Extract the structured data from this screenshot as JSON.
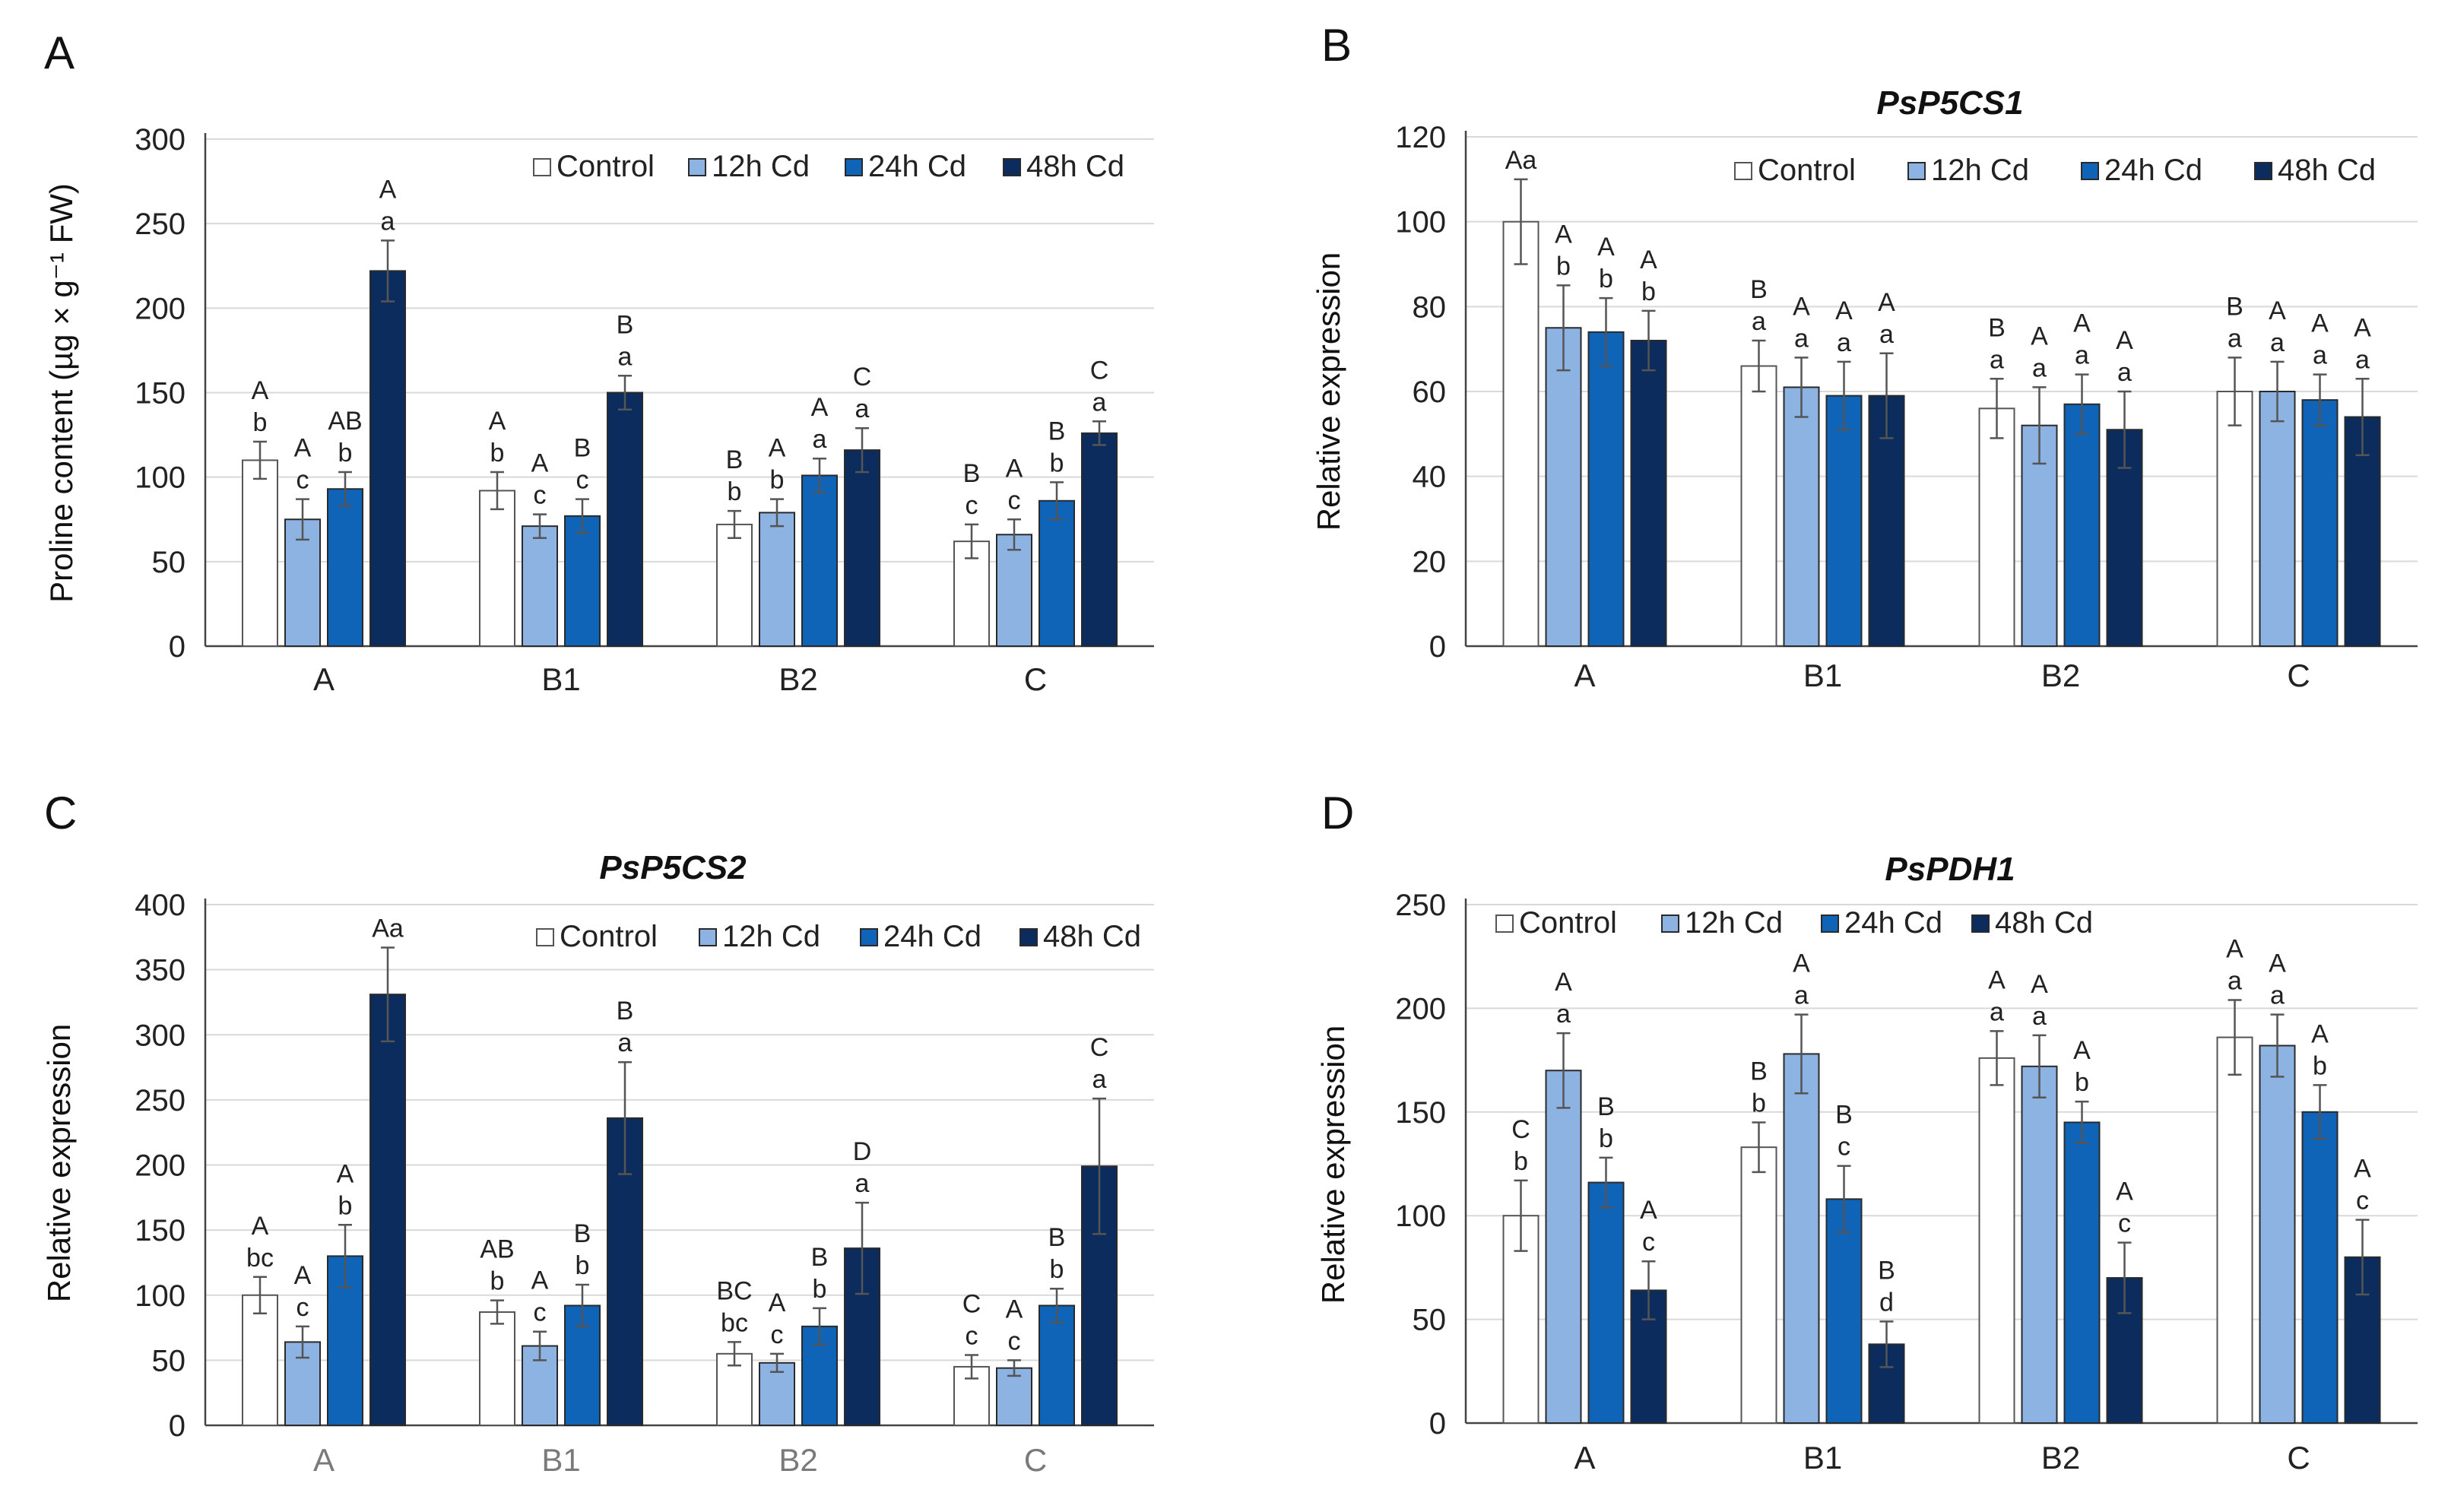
{
  "figure": {
    "legend": [
      "Control",
      "12h Cd",
      "24h Cd",
      "48h Cd"
    ],
    "colors": [
      "#ffffff",
      "#8db3e2",
      "#0f64b8",
      "#0b2c5c"
    ],
    "categories": [
      "A",
      "B1",
      "B2",
      "C"
    ]
  },
  "chart_data": [
    {
      "panel_label": "A",
      "type": "bar",
      "title": "",
      "xlabel": "",
      "ylabel": "Proline content (µg × g⁻¹ FW)",
      "ylim": [
        0,
        300
      ],
      "ytick_labels": [
        "0",
        "50",
        "100",
        "150",
        "200",
        "250",
        "300"
      ],
      "categories": [
        "A",
        "B1",
        "B2",
        "C"
      ],
      "legend_position": "top-right",
      "series": [
        {
          "name": "Control",
          "values": [
            110,
            92,
            72,
            62
          ],
          "errors": [
            11,
            11,
            8,
            10
          ],
          "upper_letters": [
            "A",
            "A",
            "B",
            "B"
          ],
          "lower_letters": [
            "b",
            "b",
            "b",
            "c"
          ]
        },
        {
          "name": "12h Cd",
          "values": [
            75,
            71,
            79,
            66
          ],
          "errors": [
            12,
            7,
            8,
            9
          ],
          "upper_letters": [
            "A",
            "A",
            "A",
            "A"
          ],
          "lower_letters": [
            "c",
            "c",
            "b",
            "c"
          ]
        },
        {
          "name": "24h Cd",
          "values": [
            93,
            77,
            101,
            86
          ],
          "errors": [
            10,
            10,
            10,
            11
          ],
          "upper_letters": [
            "AB",
            "B",
            "A",
            "B"
          ],
          "lower_letters": [
            "b",
            "c",
            "a",
            "b"
          ]
        },
        {
          "name": "48h Cd",
          "values": [
            222,
            150,
            116,
            126
          ],
          "errors": [
            18,
            10,
            13,
            7
          ],
          "upper_letters": [
            "A",
            "B",
            "C",
            "C"
          ],
          "lower_letters": [
            "a",
            "a",
            "a",
            "a"
          ]
        }
      ]
    },
    {
      "panel_label": "B",
      "type": "bar",
      "title": "PsP5CS1",
      "xlabel": "",
      "ylabel": "Relative expression",
      "ylim": [
        0,
        120
      ],
      "ytick_labels": [
        "0",
        "20",
        "40",
        "60",
        "80",
        "100",
        "120"
      ],
      "categories": [
        "A",
        "B1",
        "B2",
        "C"
      ],
      "legend_position": "top-right",
      "series": [
        {
          "name": "Control",
          "values": [
            100,
            66,
            56,
            60
          ],
          "errors": [
            10,
            6,
            7,
            8
          ],
          "upper_letters": [
            "Aa",
            "B",
            "B",
            "B"
          ],
          "lower_letters": [
            "",
            "a",
            "a",
            "a"
          ]
        },
        {
          "name": "12h Cd",
          "values": [
            75,
            61,
            52,
            60
          ],
          "errors": [
            10,
            7,
            9,
            7
          ],
          "upper_letters": [
            "A",
            "A",
            "A",
            "A"
          ],
          "lower_letters": [
            "b",
            "a",
            "a",
            "a"
          ]
        },
        {
          "name": "24h Cd",
          "values": [
            74,
            59,
            57,
            58
          ],
          "errors": [
            8,
            8,
            7,
            6
          ],
          "upper_letters": [
            "A",
            "A",
            "A",
            "A"
          ],
          "lower_letters": [
            "b",
            "a",
            "a",
            "a"
          ]
        },
        {
          "name": "48h Cd",
          "values": [
            72,
            59,
            51,
            54
          ],
          "errors": [
            7,
            10,
            9,
            9
          ],
          "upper_letters": [
            "A",
            "A",
            "A",
            "A"
          ],
          "lower_letters": [
            "b",
            "a",
            "a",
            "a"
          ]
        }
      ]
    },
    {
      "panel_label": "C",
      "type": "bar",
      "title": "PsP5CS2",
      "xlabel": "",
      "ylabel": "Relative expression",
      "ylim": [
        0,
        400
      ],
      "ytick_labels": [
        "0",
        "50",
        "100",
        "150",
        "200",
        "250",
        "300",
        "350",
        "400"
      ],
      "categories": [
        "A",
        "B1",
        "B2",
        "C"
      ],
      "legend_position": "top-right",
      "series": [
        {
          "name": "Control",
          "values": [
            100,
            87,
            55,
            45
          ],
          "errors": [
            14,
            9,
            9,
            9
          ],
          "upper_letters": [
            "A",
            "AB",
            "BC",
            "C"
          ],
          "lower_letters": [
            "bc",
            "b",
            "bc",
            "c"
          ]
        },
        {
          "name": "12h Cd",
          "values": [
            64,
            61,
            48,
            44
          ],
          "errors": [
            12,
            11,
            7,
            6
          ],
          "upper_letters": [
            "A",
            "A",
            "A",
            "A"
          ],
          "lower_letters": [
            "c",
            "c",
            "c",
            "c"
          ]
        },
        {
          "name": "24h Cd",
          "values": [
            130,
            92,
            76,
            92
          ],
          "errors": [
            24,
            16,
            14,
            13
          ],
          "upper_letters": [
            "A",
            "B",
            "B",
            "B"
          ],
          "lower_letters": [
            "b",
            "b",
            "b",
            "b"
          ]
        },
        {
          "name": "48h Cd",
          "values": [
            331,
            236,
            136,
            199
          ],
          "errors": [
            36,
            43,
            35,
            52
          ],
          "upper_letters": [
            "Aa",
            "B",
            "D",
            "C"
          ],
          "lower_letters": [
            "",
            "a",
            "a",
            "a"
          ]
        }
      ]
    },
    {
      "panel_label": "D",
      "type": "bar",
      "title": "PsPDH1",
      "xlabel": "",
      "ylabel": "Relative expression",
      "ylim": [
        0,
        250
      ],
      "ytick_labels": [
        "0",
        "50",
        "100",
        "150",
        "200",
        "250"
      ],
      "categories": [
        "A",
        "B1",
        "B2",
        "C"
      ],
      "legend_position": "top-left",
      "series": [
        {
          "name": "Control",
          "values": [
            100,
            133,
            176,
            186
          ],
          "errors": [
            17,
            12,
            13,
            18
          ],
          "upper_letters": [
            "C",
            "B",
            "A",
            "A"
          ],
          "lower_letters": [
            "b",
            "b",
            "a",
            "a"
          ]
        },
        {
          "name": "12h Cd",
          "values": [
            170,
            178,
            172,
            182
          ],
          "errors": [
            18,
            19,
            15,
            15
          ],
          "upper_letters": [
            "A",
            "A",
            "A",
            "A"
          ],
          "lower_letters": [
            "a",
            "a",
            "a",
            "a"
          ]
        },
        {
          "name": "24h Cd",
          "values": [
            116,
            108,
            145,
            150
          ],
          "errors": [
            12,
            16,
            10,
            13
          ],
          "upper_letters": [
            "B",
            "B",
            "A",
            "A"
          ],
          "lower_letters": [
            "b",
            "c",
            "b",
            "b"
          ]
        },
        {
          "name": "48h Cd",
          "values": [
            64,
            38,
            70,
            80
          ],
          "errors": [
            14,
            11,
            17,
            18
          ],
          "upper_letters": [
            "A",
            "B",
            "A",
            "A"
          ],
          "lower_letters": [
            "c",
            "d",
            "c",
            "c"
          ]
        }
      ]
    }
  ]
}
